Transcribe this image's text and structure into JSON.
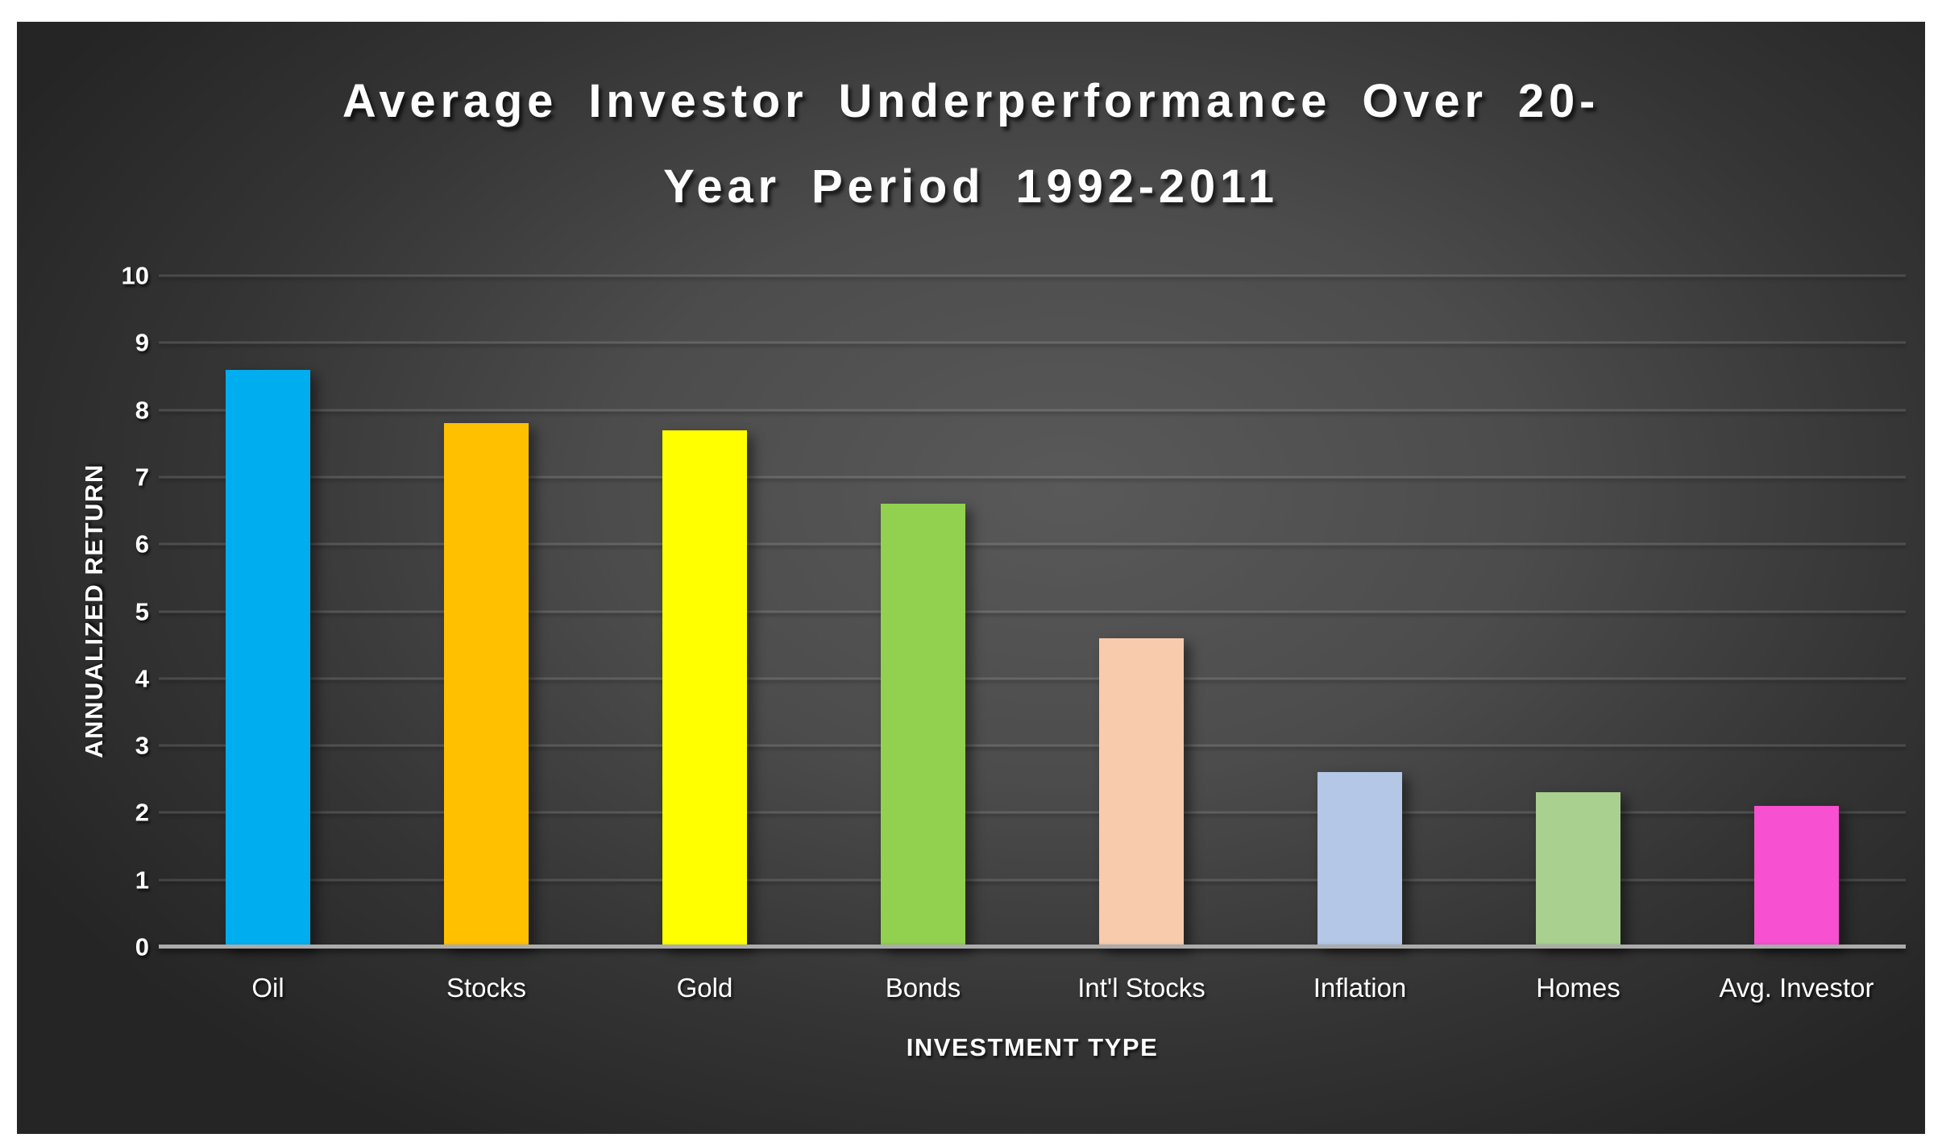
{
  "chart_data": {
    "type": "bar",
    "title_line1": "Average Investor Underperformance Over 20-",
    "title_line2": "Year Period 1992-2011",
    "xlabel": "INVESTMENT TYPE",
    "ylabel": "ANNUALIZED RETURN",
    "categories": [
      "Oil",
      "Stocks",
      "Gold",
      "Bonds",
      "Int'l Stocks",
      "Inflation",
      "Homes",
      "Avg. Investor"
    ],
    "values": [
      8.6,
      7.8,
      7.7,
      6.6,
      4.6,
      2.6,
      2.3,
      2.1
    ],
    "bar_colors": [
      "#00AEEF",
      "#FFC000",
      "#FFFF00",
      "#92D050",
      "#F8CBAD",
      "#B4C7E7",
      "#A9D08E",
      "#F750D0"
    ],
    "ylim": [
      0,
      10
    ],
    "yticks": [
      0,
      1,
      2,
      3,
      4,
      5,
      6,
      7,
      8,
      9,
      10
    ],
    "grid": true,
    "legend": false,
    "colors": {
      "plot_background_center": "#595959",
      "plot_background_edge": "#252525",
      "gridline": "rgba(255,255,255,0.13)",
      "axis_line": "#ababab",
      "text": "#ffffff"
    }
  }
}
